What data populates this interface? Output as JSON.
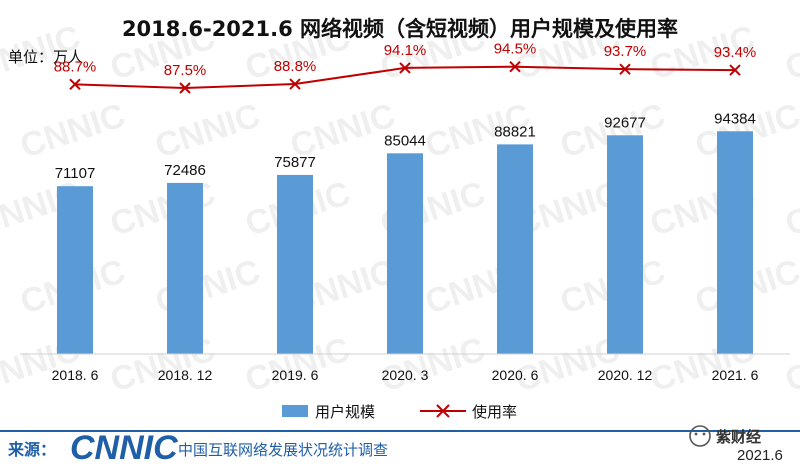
{
  "chart_data": {
    "type": "bar",
    "title": "2018.6-2021.6 网络视频（含短视频）用户规模及使用率",
    "unit_label": "单位：万人",
    "categories": [
      "2018. 6",
      "2018. 12",
      "2019. 6",
      "2020. 3",
      "2020. 6",
      "2020. 12",
      "2021. 6"
    ],
    "series": [
      {
        "name": "用户规模",
        "type": "bar",
        "values": [
          71107,
          72486,
          75877,
          85044,
          88821,
          92677,
          94384
        ],
        "labels": [
          "71107",
          "72486",
          "75877",
          "85044",
          "88821",
          "92677",
          "94384"
        ],
        "color": "#5B9BD5"
      },
      {
        "name": "使用率",
        "type": "line",
        "values": [
          88.7,
          87.5,
          88.8,
          94.1,
          94.5,
          93.7,
          93.4
        ],
        "labels": [
          "88.7%",
          "87.5%",
          "88.8%",
          "94.1%",
          "94.5%",
          "93.7%",
          "93.4%"
        ],
        "color": "#C00000"
      }
    ],
    "ylim_bar": [
      0,
      150000
    ],
    "ylim_line": [
      0,
      100
    ],
    "grid": false,
    "legend": "bottom"
  },
  "watermark": "CNNIC",
  "source": {
    "prefix": "来源：",
    "logo": "CNNIC",
    "org": "中国互联网络发展状况统计调查"
  },
  "badge": {
    "name": "紫财经",
    "date": "2021.6"
  },
  "colors": {
    "bar": "#5B9BD5",
    "line": "#C00000",
    "footer_line": "#1F5FA8",
    "source_blue": "#1F5FA8"
  }
}
